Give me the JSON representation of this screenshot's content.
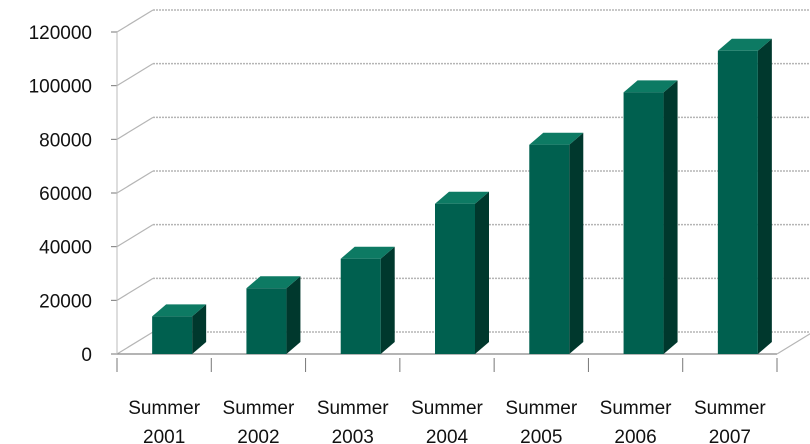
{
  "chart_data": {
    "type": "bar",
    "style": "3d-column",
    "categories": [
      [
        "Summer",
        "2001"
      ],
      [
        "Summer",
        "2002"
      ],
      [
        "Summer",
        "2003"
      ],
      [
        "Summer",
        "2004"
      ],
      [
        "Summer",
        "2005"
      ],
      [
        "Summer",
        "2006"
      ],
      [
        "Summer",
        "2007"
      ]
    ],
    "series": [
      {
        "values": [
          14000,
          24500,
          35500,
          56000,
          78000,
          97500,
          113000
        ]
      }
    ],
    "yticks": [
      0,
      20000,
      40000,
      60000,
      80000,
      100000,
      120000
    ],
    "ylim": [
      0,
      120000
    ],
    "grid": true,
    "legend": "none",
    "colors": {
      "bar_front": "#00604f",
      "bar_side": "#00382d",
      "bar_top": "#0d7a63",
      "grid": "#b5b5b5"
    }
  }
}
